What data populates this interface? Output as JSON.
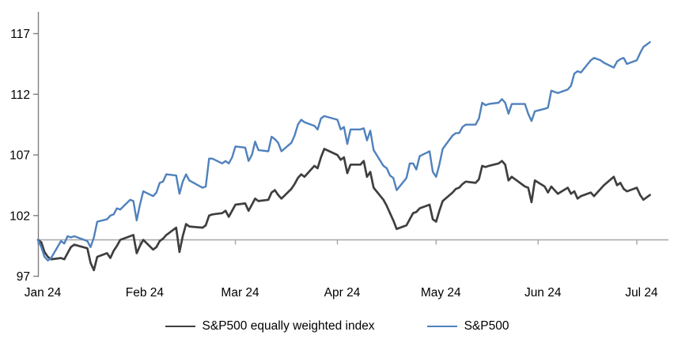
{
  "chart_data": {
    "type": "line",
    "title": "",
    "x_axis": {
      "labels": [
        "Jan 24",
        "Feb 24",
        "Mar 24",
        "Apr 24",
        "May 24",
        "Jun 24",
        "Jul 24"
      ],
      "label_day_of_year": [
        1,
        32,
        61,
        92,
        122,
        153,
        183
      ],
      "range_day_of_year": [
        1,
        190
      ]
    },
    "y_axis": {
      "ticks": [
        97,
        102,
        107,
        112,
        117
      ],
      "ylim": [
        97,
        118
      ],
      "baseline_value": 100,
      "grid": "off"
    },
    "legend_position": "bottom",
    "colors": {
      "equal_weight_line": "#3f3f3f",
      "sp500_line": "#4f81bd",
      "baseline": "#a6a6a6",
      "axis": "#7f7f7f",
      "text": "#000000"
    },
    "series": [
      {
        "name": "S&P500 equally weighted index",
        "color": "#3f3f3f",
        "points": [
          [
            1,
            100
          ],
          [
            2,
            99.8
          ],
          [
            3,
            99.0
          ],
          [
            4,
            98.6
          ],
          [
            5,
            98.4
          ],
          [
            8,
            98.5
          ],
          [
            9,
            98.4
          ],
          [
            10,
            98.9
          ],
          [
            11,
            99.4
          ],
          [
            12,
            99.6
          ],
          [
            16,
            99.3
          ],
          [
            17,
            98.1
          ],
          [
            18,
            97.5
          ],
          [
            19,
            98.6
          ],
          [
            22,
            98.9
          ],
          [
            23,
            98.5
          ],
          [
            24,
            99.1
          ],
          [
            25,
            99.5
          ],
          [
            26,
            100.0
          ],
          [
            29,
            100.3
          ],
          [
            30,
            100.4
          ],
          [
            31,
            98.9
          ],
          [
            32,
            99.5
          ],
          [
            33,
            100.0
          ],
          [
            36,
            99.2
          ],
          [
            37,
            99.4
          ],
          [
            38,
            99.9
          ],
          [
            39,
            100.1
          ],
          [
            40,
            100.4
          ],
          [
            43,
            101.0
          ],
          [
            44,
            99.0
          ],
          [
            45,
            100.3
          ],
          [
            46,
            101.3
          ],
          [
            47,
            101.1
          ],
          [
            51,
            101.0
          ],
          [
            52,
            101.2
          ],
          [
            53,
            102.0
          ],
          [
            54,
            102.1
          ],
          [
            57,
            102.2
          ],
          [
            58,
            102.4
          ],
          [
            59,
            101.9
          ],
          [
            60,
            102.4
          ],
          [
            61,
            102.9
          ],
          [
            64,
            103.0
          ],
          [
            65,
            102.4
          ],
          [
            66,
            102.9
          ],
          [
            67,
            103.4
          ],
          [
            68,
            103.2
          ],
          [
            71,
            103.3
          ],
          [
            72,
            103.9
          ],
          [
            73,
            104.1
          ],
          [
            74,
            103.7
          ],
          [
            75,
            103.4
          ],
          [
            78,
            104.2
          ],
          [
            79,
            104.6
          ],
          [
            80,
            105.1
          ],
          [
            81,
            105.4
          ],
          [
            82,
            105.2
          ],
          [
            85,
            106.1
          ],
          [
            86,
            105.9
          ],
          [
            87,
            106.8
          ],
          [
            88,
            107.5
          ],
          [
            92,
            107.0
          ],
          [
            93,
            106.6
          ],
          [
            94,
            106.8
          ],
          [
            95,
            105.5
          ],
          [
            96,
            106.2
          ],
          [
            99,
            106.2
          ],
          [
            100,
            106.5
          ],
          [
            101,
            105.2
          ],
          [
            102,
            105.6
          ],
          [
            103,
            104.3
          ],
          [
            106,
            103.3
          ],
          [
            107,
            102.8
          ],
          [
            108,
            102.2
          ],
          [
            109,
            101.6
          ],
          [
            110,
            100.9
          ],
          [
            113,
            101.2
          ],
          [
            114,
            101.7
          ],
          [
            115,
            102.2
          ],
          [
            116,
            102.3
          ],
          [
            117,
            102.6
          ],
          [
            120,
            102.9
          ],
          [
            121,
            101.7
          ],
          [
            122,
            101.5
          ],
          [
            123,
            102.4
          ],
          [
            124,
            103.2
          ],
          [
            127,
            103.9
          ],
          [
            128,
            104.2
          ],
          [
            129,
            104.3
          ],
          [
            130,
            104.6
          ],
          [
            131,
            104.8
          ],
          [
            134,
            104.7
          ],
          [
            135,
            105.0
          ],
          [
            136,
            106.1
          ],
          [
            137,
            106.0
          ],
          [
            138,
            106.1
          ],
          [
            141,
            106.3
          ],
          [
            142,
            106.5
          ],
          [
            143,
            106.2
          ],
          [
            144,
            104.9
          ],
          [
            145,
            105.2
          ],
          [
            149,
            104.4
          ],
          [
            150,
            104.3
          ],
          [
            151,
            103.1
          ],
          [
            152,
            104.9
          ],
          [
            155,
            104.4
          ],
          [
            156,
            103.9
          ],
          [
            157,
            104.4
          ],
          [
            158,
            104.1
          ],
          [
            159,
            103.8
          ],
          [
            162,
            104.3
          ],
          [
            163,
            103.8
          ],
          [
            164,
            104.0
          ],
          [
            165,
            103.4
          ],
          [
            166,
            103.6
          ],
          [
            169,
            103.9
          ],
          [
            170,
            103.6
          ],
          [
            172,
            104.2
          ],
          [
            173,
            104.5
          ],
          [
            176,
            105.2
          ],
          [
            177,
            104.5
          ],
          [
            178,
            104.7
          ],
          [
            179,
            104.2
          ],
          [
            180,
            104.0
          ],
          [
            183,
            104.3
          ],
          [
            184,
            103.7
          ],
          [
            185,
            103.3
          ],
          [
            187,
            103.7
          ]
        ]
      },
      {
        "name": "S&P500",
        "color": "#4f81bd",
        "points": [
          [
            1,
            100
          ],
          [
            2,
            99.4
          ],
          [
            3,
            98.6
          ],
          [
            4,
            98.3
          ],
          [
            5,
            98.5
          ],
          [
            8,
            99.9
          ],
          [
            9,
            99.7
          ],
          [
            10,
            100.3
          ],
          [
            11,
            100.2
          ],
          [
            12,
            100.3
          ],
          [
            16,
            99.9
          ],
          [
            17,
            99.4
          ],
          [
            18,
            100.2
          ],
          [
            19,
            101.5
          ],
          [
            22,
            101.7
          ],
          [
            23,
            102.0
          ],
          [
            24,
            102.1
          ],
          [
            25,
            102.6
          ],
          [
            26,
            102.5
          ],
          [
            29,
            103.3
          ],
          [
            30,
            103.2
          ],
          [
            31,
            101.6
          ],
          [
            32,
            102.9
          ],
          [
            33,
            104.0
          ],
          [
            36,
            103.6
          ],
          [
            37,
            103.9
          ],
          [
            38,
            104.7
          ],
          [
            39,
            104.8
          ],
          [
            40,
            105.4
          ],
          [
            43,
            105.3
          ],
          [
            44,
            103.8
          ],
          [
            45,
            104.8
          ],
          [
            46,
            105.4
          ],
          [
            47,
            104.9
          ],
          [
            51,
            104.3
          ],
          [
            52,
            104.4
          ],
          [
            53,
            106.7
          ],
          [
            54,
            106.7
          ],
          [
            57,
            106.3
          ],
          [
            58,
            106.5
          ],
          [
            59,
            106.3
          ],
          [
            60,
            106.8
          ],
          [
            61,
            107.7
          ],
          [
            64,
            107.6
          ],
          [
            65,
            106.5
          ],
          [
            66,
            107.0
          ],
          [
            67,
            108.1
          ],
          [
            68,
            107.4
          ],
          [
            71,
            107.3
          ],
          [
            72,
            108.5
          ],
          [
            73,
            108.3
          ],
          [
            74,
            108.0
          ],
          [
            75,
            107.3
          ],
          [
            78,
            108.0
          ],
          [
            79,
            108.6
          ],
          [
            80,
            109.5
          ],
          [
            81,
            109.9
          ],
          [
            82,
            109.7
          ],
          [
            85,
            109.4
          ],
          [
            86,
            109.1
          ],
          [
            87,
            110.0
          ],
          [
            88,
            110.2
          ],
          [
            92,
            109.9
          ],
          [
            93,
            109.1
          ],
          [
            94,
            109.3
          ],
          [
            95,
            107.9
          ],
          [
            96,
            109.1
          ],
          [
            99,
            109.1
          ],
          [
            100,
            109.2
          ],
          [
            101,
            108.2
          ],
          [
            102,
            109.0
          ],
          [
            103,
            107.4
          ],
          [
            106,
            106.1
          ],
          [
            107,
            105.9
          ],
          [
            108,
            105.3
          ],
          [
            109,
            105.1
          ],
          [
            110,
            104.1
          ],
          [
            113,
            105.1
          ],
          [
            114,
            106.3
          ],
          [
            115,
            106.3
          ],
          [
            116,
            105.8
          ],
          [
            117,
            106.9
          ],
          [
            120,
            107.3
          ],
          [
            121,
            105.6
          ],
          [
            122,
            105.2
          ],
          [
            123,
            106.2
          ],
          [
            124,
            107.5
          ],
          [
            127,
            108.6
          ],
          [
            128,
            108.8
          ],
          [
            129,
            108.8
          ],
          [
            130,
            109.3
          ],
          [
            131,
            109.5
          ],
          [
            134,
            109.5
          ],
          [
            135,
            110.0
          ],
          [
            136,
            111.3
          ],
          [
            137,
            111.1
          ],
          [
            138,
            111.2
          ],
          [
            141,
            111.3
          ],
          [
            142,
            111.6
          ],
          [
            143,
            111.3
          ],
          [
            144,
            110.4
          ],
          [
            145,
            111.2
          ],
          [
            149,
            111.2
          ],
          [
            150,
            110.4
          ],
          [
            151,
            109.8
          ],
          [
            152,
            110.6
          ],
          [
            155,
            110.8
          ],
          [
            156,
            110.9
          ],
          [
            157,
            112.3
          ],
          [
            158,
            112.2
          ],
          [
            159,
            112.1
          ],
          [
            162,
            112.4
          ],
          [
            163,
            112.7
          ],
          [
            164,
            113.7
          ],
          [
            165,
            113.9
          ],
          [
            166,
            113.8
          ],
          [
            169,
            114.8
          ],
          [
            170,
            115.0
          ],
          [
            172,
            114.8
          ],
          [
            173,
            114.6
          ],
          [
            176,
            114.2
          ],
          [
            177,
            114.7
          ],
          [
            178,
            114.9
          ],
          [
            179,
            115.0
          ],
          [
            180,
            114.5
          ],
          [
            183,
            114.8
          ],
          [
            184,
            115.4
          ],
          [
            185,
            115.9
          ],
          [
            187,
            116.3
          ]
        ]
      }
    ]
  },
  "legend": {
    "equal_weight_label": "S&P500 equally weighted index",
    "sp500_label": "S&P500"
  }
}
